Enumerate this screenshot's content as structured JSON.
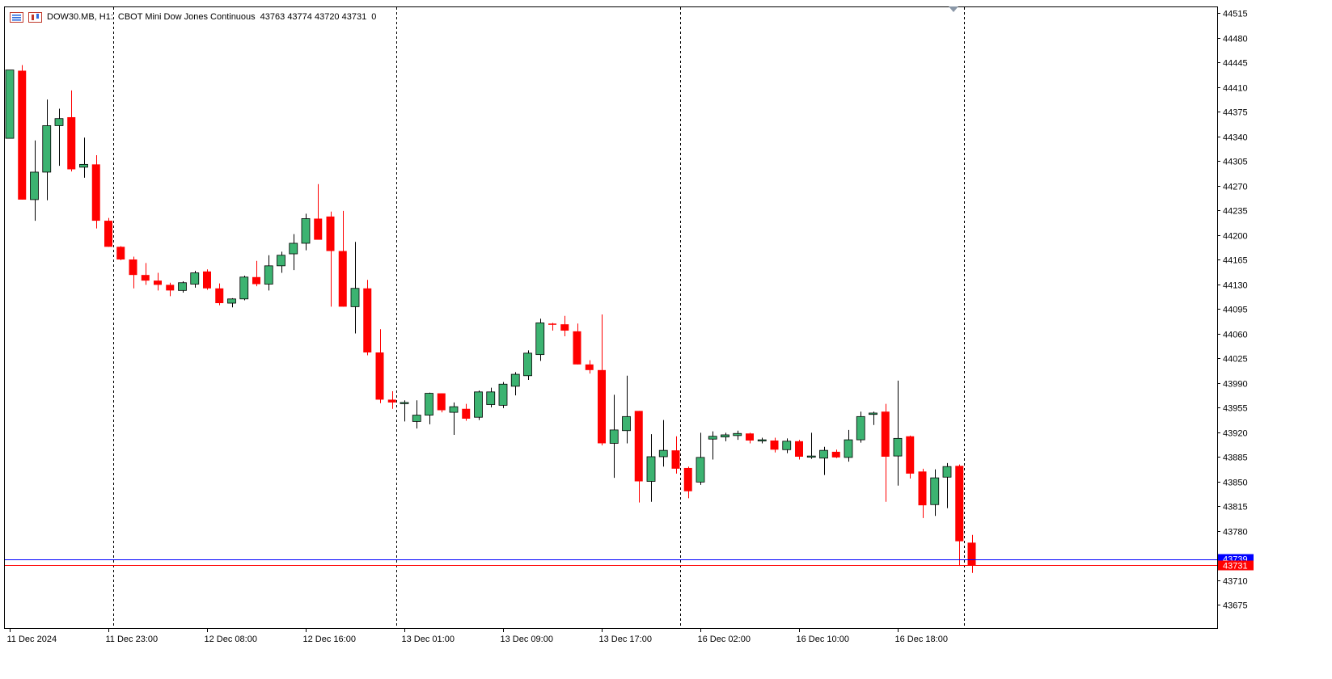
{
  "header": {
    "symbol": "DOW30.MB, H1:",
    "description": "CBOT Mini Dow Jones Continuous",
    "ohlc": "43763 43774 43720 43731",
    "extra": "0"
  },
  "colors": {
    "bull": "#3cb371",
    "bear": "#ff0000",
    "bid_line": "#ff0000",
    "ask_line": "#0000ff",
    "grid": "#000000"
  },
  "chart_data": {
    "type": "candlestick",
    "ylim": [
      43640,
      44525
    ],
    "price_ticks": [
      "44515",
      "44480",
      "44445",
      "44410",
      "44375",
      "44340",
      "44305",
      "44270",
      "44235",
      "44200",
      "44165",
      "44130",
      "44095",
      "44060",
      "44025",
      "43990",
      "43955",
      "43920",
      "43885",
      "43850",
      "43815",
      "43780",
      "43710",
      "43675"
    ],
    "price_tick_values": [
      44515,
      44480,
      44445,
      44410,
      44375,
      44340,
      44305,
      44270,
      44235,
      44200,
      44165,
      44130,
      44095,
      44060,
      44025,
      43990,
      43955,
      43920,
      43885,
      43850,
      43815,
      43780,
      43710,
      43675
    ],
    "time_labels": [
      "11 Dec 2024",
      "11 Dec 23:00",
      "12 Dec 08:00",
      "12 Dec 16:00",
      "13 Dec 01:00",
      "13 Dec 09:00",
      "13 Dec 17:00",
      "16 Dec 02:00",
      "16 Dec 10:00",
      "16 Dec 18:00"
    ],
    "time_label_bars": [
      0,
      8,
      16,
      24,
      32,
      40,
      48,
      56,
      64,
      72
    ],
    "day_separators_bars": [
      8.7,
      31.65,
      54.7,
      77.7
    ],
    "ask_price_label": "43739",
    "bid_price_label": "43731",
    "ask_price": 43739,
    "bid_price": 43731,
    "candles": [
      [
        44337,
        44434,
        44337,
        44434
      ],
      [
        44433,
        44441,
        44250,
        44250
      ],
      [
        44250,
        44334,
        44220,
        44289
      ],
      [
        44289,
        44392,
        44249,
        44355
      ],
      [
        44355,
        44379,
        44298,
        44365
      ],
      [
        44367,
        44405,
        44290,
        44293
      ],
      [
        44296,
        44338,
        44281,
        44300
      ],
      [
        44300,
        44313,
        44209,
        44220
      ],
      [
        44220,
        44224,
        44183,
        44183
      ],
      [
        44183,
        44184,
        44164,
        44165
      ],
      [
        44165,
        44169,
        44124,
        44143
      ],
      [
        44143,
        44160,
        44129,
        44135
      ],
      [
        44135,
        44146,
        44121,
        44129
      ],
      [
        44129,
        44132,
        44113,
        44121
      ],
      [
        44121,
        44134,
        44118,
        44132
      ],
      [
        44130,
        44149,
        44125,
        44146
      ],
      [
        44148,
        44151,
        44122,
        44124
      ],
      [
        44124,
        44131,
        44100,
        44103
      ],
      [
        44103,
        44110,
        44097,
        44109
      ],
      [
        44109,
        44142,
        44107,
        44140
      ],
      [
        44140,
        44163,
        44127,
        44130
      ],
      [
        44130,
        44171,
        44121,
        44156
      ],
      [
        44156,
        44176,
        44146,
        44171
      ],
      [
        44173,
        44201,
        44150,
        44188
      ],
      [
        44188,
        44230,
        44178,
        44223
      ],
      [
        44223,
        44272,
        44199,
        44193
      ],
      [
        44226,
        44233,
        44098,
        44177
      ],
      [
        44177,
        44234,
        44098,
        44098
      ],
      [
        44098,
        44190,
        44060,
        44124
      ],
      [
        44124,
        44136,
        44029,
        44033
      ],
      [
        44033,
        44066,
        43961,
        43966
      ],
      [
        43966,
        43978,
        43953,
        43962
      ],
      [
        43962,
        43965,
        43935,
        43962
      ],
      [
        43935,
        43965,
        43925,
        43944
      ],
      [
        43944,
        43976,
        43931,
        43975
      ],
      [
        43975,
        43975,
        43948,
        43951
      ],
      [
        43948,
        43962,
        43916,
        43956
      ],
      [
        43953,
        43960,
        43936,
        43939
      ],
      [
        43941,
        43979,
        43937,
        43977
      ],
      [
        43959,
        43983,
        43955,
        43977
      ],
      [
        43958,
        43991,
        43954,
        43988
      ],
      [
        43985,
        44005,
        43972,
        44002
      ],
      [
        44000,
        44036,
        43994,
        44032
      ],
      [
        44030,
        44081,
        44021,
        44075
      ],
      [
        44074,
        44075,
        44064,
        44073
      ],
      [
        44073,
        44085,
        44056,
        44064
      ],
      [
        44063,
        44074,
        44016,
        44016
      ],
      [
        44016,
        44022,
        44003,
        44008
      ],
      [
        44008,
        44087,
        43901,
        43904
      ],
      [
        43904,
        43973,
        43855,
        43923
      ],
      [
        43922,
        44000,
        43904,
        43942
      ],
      [
        43950,
        43950,
        43820,
        43850
      ],
      [
        43850,
        43917,
        43821,
        43885
      ],
      [
        43885,
        43937,
        43871,
        43894
      ],
      [
        43894,
        43914,
        43861,
        43868
      ],
      [
        43869,
        43871,
        43826,
        43836
      ],
      [
        43849,
        43919,
        43845,
        43884
      ],
      [
        43910,
        43921,
        43881,
        43914
      ],
      [
        43913,
        43919,
        43907,
        43916
      ],
      [
        43915,
        43922,
        43909,
        43918
      ],
      [
        43918,
        43919,
        43904,
        43908
      ],
      [
        43908,
        43912,
        43904,
        43909
      ],
      [
        43908,
        43912,
        43891,
        43895
      ],
      [
        43895,
        43911,
        43890,
        43907
      ],
      [
        43907,
        43909,
        43881,
        43885
      ],
      [
        43885,
        43919,
        43882,
        43886
      ],
      [
        43883,
        43899,
        43859,
        43894
      ],
      [
        43892,
        43895,
        43883,
        43884
      ],
      [
        43884,
        43923,
        43878,
        43909
      ],
      [
        43909,
        43949,
        43905,
        43942
      ],
      [
        43945,
        43949,
        43930,
        43947
      ],
      [
        43949,
        43960,
        43821,
        43885
      ],
      [
        43886,
        43993,
        43844,
        43911
      ],
      [
        43914,
        43915,
        43854,
        43861
      ],
      [
        43864,
        43868,
        43798,
        43816
      ],
      [
        43817,
        43867,
        43801,
        43855
      ],
      [
        43856,
        43876,
        43812,
        43871
      ],
      [
        43872,
        43874,
        43730,
        43765
      ],
      [
        43763,
        43774,
        43720,
        43731
      ]
    ]
  }
}
